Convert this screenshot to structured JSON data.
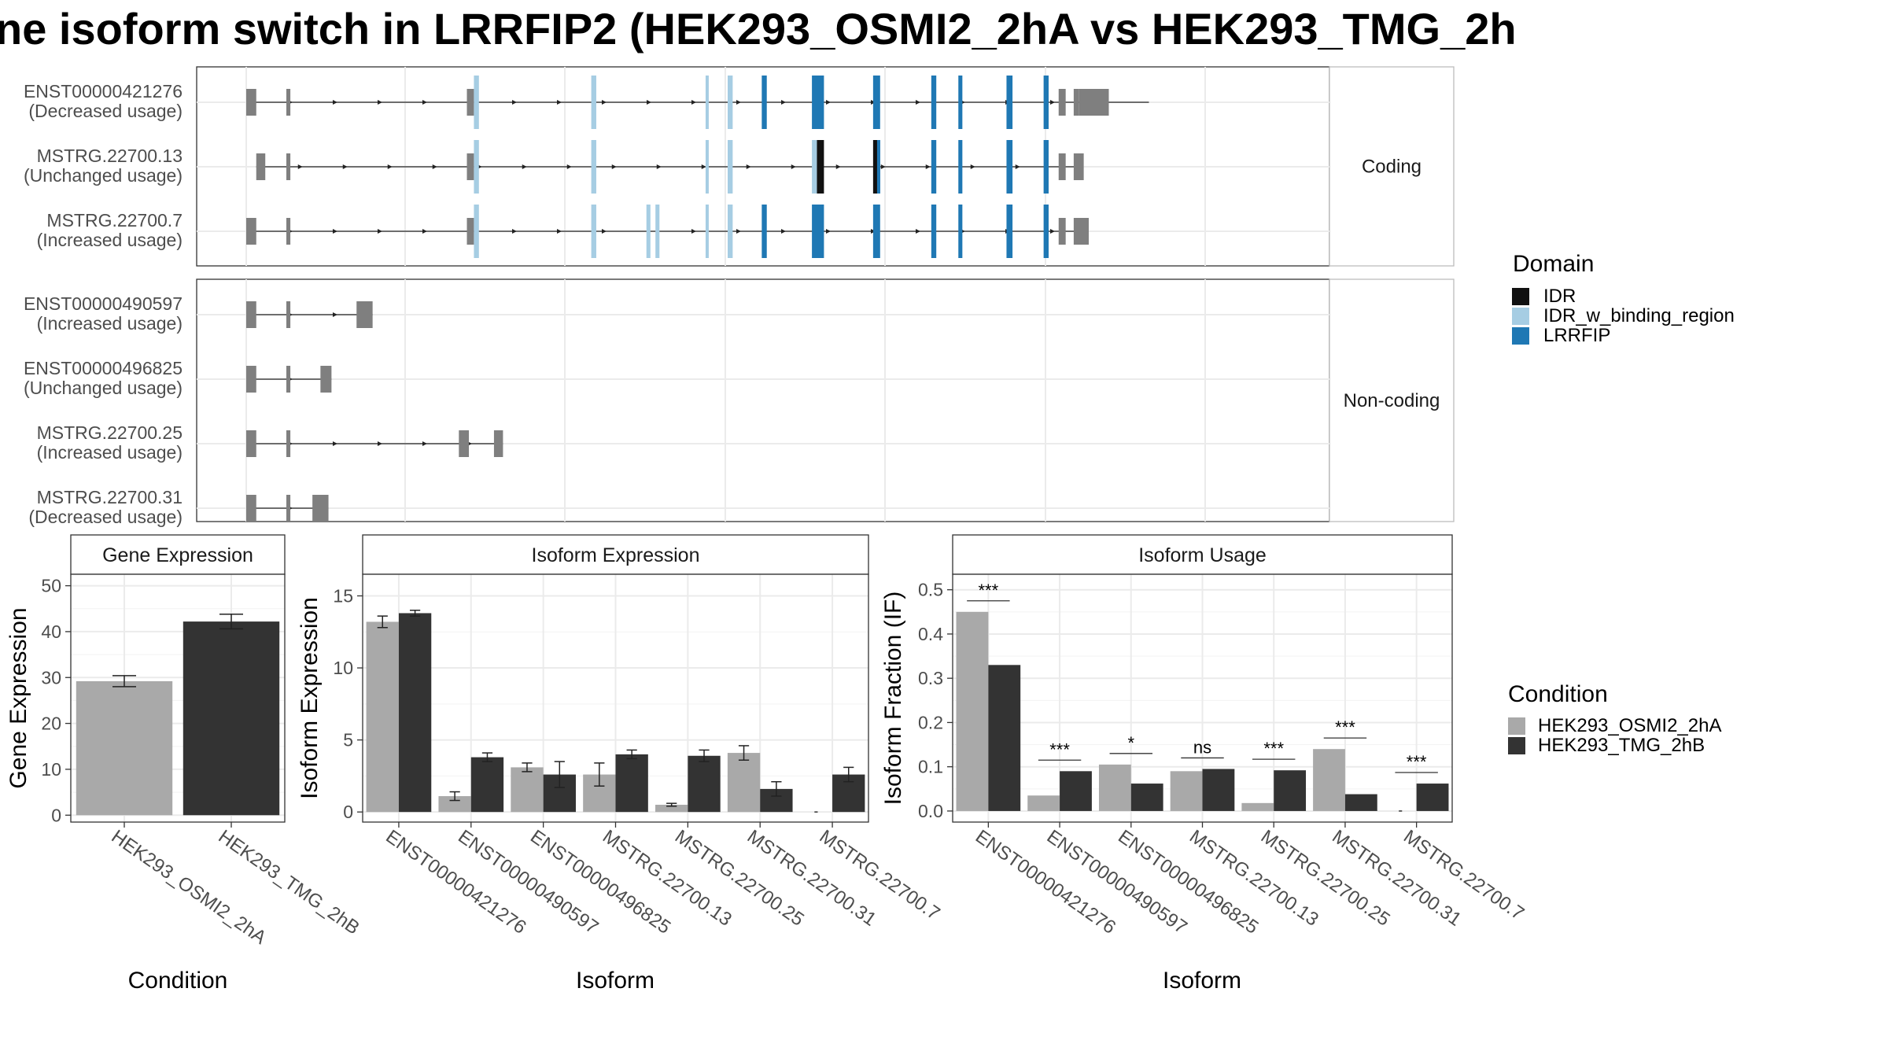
{
  "title": "ne isoform switch in LRRFIP2 (HEK293_OSMI2_2hA vs HEK293_TMG_2h",
  "colors": {
    "exon": "#7f7f7f",
    "IDR": "#111111",
    "IDR_w_binding_region": "#a6cde3",
    "LRRFIP": "#1f78b4",
    "cond1": "#a9a9a9",
    "cond2": "#333333"
  },
  "structure": {
    "facets": [
      {
        "label": "Coding",
        "transcripts": [
          {
            "id": "ENST00000421276",
            "usage": "(Decreased usage)",
            "intron": [
              0.0,
              0.9
            ],
            "exons": [
              [
                0.0,
                0.01,
                "exon"
              ],
              [
                0.04,
                0.044,
                "exon"
              ],
              [
                0.22,
                0.227,
                "exon"
              ],
              [
                0.227,
                0.232,
                "IDR_w_binding_region"
              ],
              [
                0.344,
                0.349,
                "IDR_w_binding_region"
              ],
              [
                0.458,
                0.461,
                "IDR_w_binding_region"
              ],
              [
                0.48,
                0.485,
                "IDR_w_binding_region"
              ],
              [
                0.514,
                0.519,
                "LRRFIP"
              ],
              [
                0.564,
                0.576,
                "LRRFIP"
              ],
              [
                0.625,
                0.632,
                "LRRFIP"
              ],
              [
                0.683,
                0.688,
                "LRRFIP"
              ],
              [
                0.71,
                0.714,
                "LRRFIP"
              ],
              [
                0.758,
                0.764,
                "LRRFIP"
              ],
              [
                0.795,
                0.8,
                "LRRFIP"
              ],
              [
                0.81,
                0.817,
                "exon"
              ],
              [
                0.825,
                0.83,
                "exon"
              ],
              [
                0.83,
                0.86,
                "exon"
              ]
            ]
          },
          {
            "id": "MSTRG.22700.13",
            "usage": "(Unchanged usage)",
            "intron": [
              0.01,
              0.83
            ],
            "exons": [
              [
                0.01,
                0.019,
                "exon"
              ],
              [
                0.04,
                0.044,
                "exon"
              ],
              [
                0.22,
                0.227,
                "exon"
              ],
              [
                0.227,
                0.232,
                "IDR_w_binding_region"
              ],
              [
                0.344,
                0.349,
                "IDR_w_binding_region"
              ],
              [
                0.458,
                0.461,
                "IDR_w_binding_region"
              ],
              [
                0.48,
                0.485,
                "IDR_w_binding_region"
              ],
              [
                0.564,
                0.569,
                "IDR_w_binding_region"
              ],
              [
                0.569,
                0.576,
                "IDR"
              ],
              [
                0.625,
                0.629,
                "IDR"
              ],
              [
                0.629,
                0.632,
                "LRRFIP"
              ],
              [
                0.683,
                0.688,
                "LRRFIP"
              ],
              [
                0.71,
                0.714,
                "LRRFIP"
              ],
              [
                0.758,
                0.764,
                "LRRFIP"
              ],
              [
                0.795,
                0.8,
                "LRRFIP"
              ],
              [
                0.81,
                0.817,
                "exon"
              ],
              [
                0.825,
                0.835,
                "exon"
              ]
            ]
          },
          {
            "id": "MSTRG.22700.7",
            "usage": "(Increased usage)",
            "intron": [
              0.0,
              0.84
            ],
            "exons": [
              [
                0.0,
                0.01,
                "exon"
              ],
              [
                0.04,
                0.044,
                "exon"
              ],
              [
                0.22,
                0.227,
                "exon"
              ],
              [
                0.227,
                0.232,
                "IDR_w_binding_region"
              ],
              [
                0.344,
                0.349,
                "IDR_w_binding_region"
              ],
              [
                0.399,
                0.403,
                "IDR_w_binding_region"
              ],
              [
                0.408,
                0.412,
                "IDR_w_binding_region"
              ],
              [
                0.458,
                0.461,
                "IDR_w_binding_region"
              ],
              [
                0.48,
                0.485,
                "IDR_w_binding_region"
              ],
              [
                0.514,
                0.519,
                "LRRFIP"
              ],
              [
                0.564,
                0.576,
                "LRRFIP"
              ],
              [
                0.625,
                0.632,
                "LRRFIP"
              ],
              [
                0.683,
                0.688,
                "LRRFIP"
              ],
              [
                0.71,
                0.714,
                "LRRFIP"
              ],
              [
                0.758,
                0.764,
                "LRRFIP"
              ],
              [
                0.795,
                0.8,
                "LRRFIP"
              ],
              [
                0.81,
                0.817,
                "exon"
              ],
              [
                0.825,
                0.84,
                "exon"
              ]
            ]
          }
        ]
      },
      {
        "label": "Non-coding",
        "transcripts": [
          {
            "id": "ENST00000490597",
            "usage": "(Increased usage)",
            "intron": [
              0.0,
              0.126
            ],
            "exons": [
              [
                0.0,
                0.01,
                "exon"
              ],
              [
                0.04,
                0.044,
                "exon"
              ],
              [
                0.11,
                0.126,
                "exon"
              ]
            ]
          },
          {
            "id": "ENST00000496825",
            "usage": "(Unchanged usage)",
            "intron": [
              0.0,
              0.085
            ],
            "exons": [
              [
                0.0,
                0.01,
                "exon"
              ],
              [
                0.04,
                0.044,
                "exon"
              ],
              [
                0.074,
                0.085,
                "exon"
              ]
            ]
          },
          {
            "id": "MSTRG.22700.25",
            "usage": "(Increased usage)",
            "intron": [
              0.0,
              0.256
            ],
            "exons": [
              [
                0.0,
                0.01,
                "exon"
              ],
              [
                0.04,
                0.044,
                "exon"
              ],
              [
                0.212,
                0.222,
                "exon"
              ],
              [
                0.247,
                0.256,
                "exon"
              ]
            ]
          },
          {
            "id": "MSTRG.22700.31",
            "usage": "(Decreased usage)",
            "intron": [
              0.0,
              0.082
            ],
            "exons": [
              [
                0.0,
                0.01,
                "exon"
              ],
              [
                0.04,
                0.044,
                "exon"
              ],
              [
                0.066,
                0.082,
                "exon"
              ]
            ]
          }
        ]
      }
    ]
  },
  "domain_legend": {
    "title": "Domain",
    "items": [
      {
        "label": "IDR",
        "key": "IDR"
      },
      {
        "label": "IDR_w_binding_region",
        "key": "IDR_w_binding_region"
      },
      {
        "label": "LRRFIP",
        "key": "LRRFIP"
      }
    ]
  },
  "condition_legend": {
    "title": "Condition",
    "items": [
      {
        "label": "HEK293_OSMI2_2hA",
        "key": "cond1"
      },
      {
        "label": "HEK293_TMG_2hB",
        "key": "cond2"
      }
    ]
  },
  "chart_data": [
    {
      "type": "bar",
      "title": "Gene Expression",
      "xlabel": "Condition",
      "ylabel": "Gene Expression",
      "categories": [
        "HEK293_OSMI2_2hA",
        "HEK293_TMG_2hB"
      ],
      "values": [
        29.2,
        42.2
      ],
      "error": [
        1.2,
        1.6
      ],
      "ylim": [
        -1.5,
        52.5
      ],
      "yticks": [
        0,
        10,
        20,
        30,
        40,
        50
      ],
      "grid": true
    },
    {
      "type": "bar",
      "title": "Isoform Expression",
      "xlabel": "Isoform",
      "ylabel": "Isoform Expression",
      "categories": [
        "ENST00000421276",
        "ENST00000490597",
        "ENST00000496825",
        "MSTRG.22700.13",
        "MSTRG.22700.25",
        "MSTRG.22700.31",
        "MSTRG.22700.7"
      ],
      "series": [
        {
          "name": "HEK293_OSMI2_2hA",
          "values": [
            13.2,
            1.1,
            3.1,
            2.6,
            0.5,
            4.1,
            0.0
          ],
          "error": [
            0.4,
            0.3,
            0.3,
            0.8,
            0.1,
            0.5,
            0.0
          ]
        },
        {
          "name": "HEK293_TMG_2hB",
          "values": [
            13.8,
            3.8,
            2.6,
            4.0,
            3.9,
            1.6,
            2.6
          ],
          "error": [
            0.2,
            0.3,
            0.9,
            0.3,
            0.4,
            0.5,
            0.5
          ]
        }
      ],
      "ylim": [
        -0.7,
        16.5
      ],
      "yticks": [
        0,
        5,
        10,
        15
      ],
      "grid": true
    },
    {
      "type": "bar",
      "title": "Isoform Usage",
      "xlabel": "Isoform",
      "ylabel": "Isoform Fraction (IF)",
      "categories": [
        "ENST00000421276",
        "ENST00000490597",
        "ENST00000496825",
        "MSTRG.22700.13",
        "MSTRG.22700.25",
        "MSTRG.22700.31",
        "MSTRG.22700.7"
      ],
      "series": [
        {
          "name": "HEK293_OSMI2_2hA",
          "values": [
            0.45,
            0.035,
            0.105,
            0.09,
            0.018,
            0.14,
            0.0
          ]
        },
        {
          "name": "HEK293_TMG_2hB",
          "values": [
            0.33,
            0.09,
            0.062,
            0.095,
            0.092,
            0.038,
            0.062
          ]
        }
      ],
      "significance": [
        "***",
        "***",
        "*",
        "ns",
        "***",
        "***",
        "***"
      ],
      "ylim": [
        -0.025,
        0.535
      ],
      "yticks": [
        0.0,
        0.1,
        0.2,
        0.3,
        0.4,
        0.5
      ],
      "grid": true
    }
  ]
}
